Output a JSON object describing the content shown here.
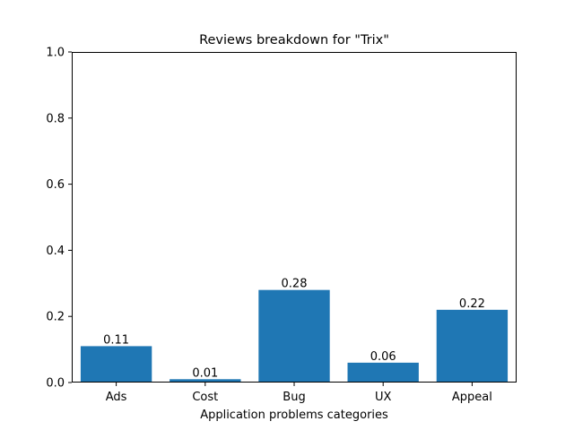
{
  "chart_data": {
    "type": "bar",
    "title": "Reviews breakdown for \"Trix\"",
    "xlabel": "Application problems categories",
    "ylabel": "",
    "categories": [
      "Ads",
      "Cost",
      "Bug",
      "UX",
      "Appeal"
    ],
    "values": [
      0.11,
      0.01,
      0.28,
      0.06,
      0.22
    ],
    "data_labels": [
      "0.11",
      "0.01",
      "0.28",
      "0.06",
      "0.22"
    ],
    "ylim": [
      0,
      1.0
    ],
    "yticks": [
      0.0,
      0.2,
      0.4,
      0.6,
      0.8,
      1.0
    ],
    "ytick_labels": [
      "0.0",
      "0.2",
      "0.4",
      "0.6",
      "0.8",
      "1.0"
    ],
    "grid": false,
    "legend": "none",
    "bar_color": "#1f77b4"
  }
}
